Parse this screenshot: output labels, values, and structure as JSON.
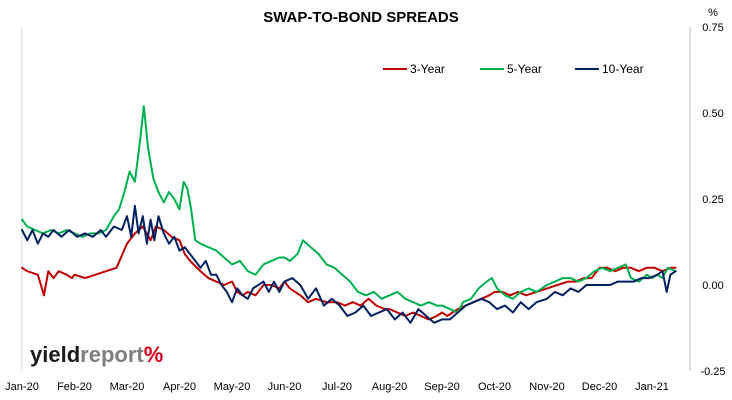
{
  "chart_data": {
    "type": "line",
    "title": "SWAP-TO-BOND SPREADS",
    "y_unit": "%",
    "ylim": [
      -0.25,
      0.75
    ],
    "y_ticks": [
      "0.75",
      "0.50",
      "0.25",
      "0.00",
      "-0.25"
    ],
    "y_axis_position": "right",
    "x_ticks": [
      "Jan-20",
      "Feb-20",
      "Mar-20",
      "Apr-20",
      "May-20",
      "Jun-20",
      "Jul-20",
      "Aug-20",
      "Sep-20",
      "Oct-20",
      "Nov-20",
      "Dec-20",
      "Jan-21"
    ],
    "grid": false,
    "legend_position": "top-right",
    "series": [
      {
        "name": "3-Year",
        "color": "#c00000",
        "points": [
          [
            0.0,
            0.05
          ],
          [
            0.1,
            0.04
          ],
          [
            0.3,
            0.03
          ],
          [
            0.42,
            -0.03
          ],
          [
            0.5,
            0.04
          ],
          [
            0.6,
            0.02
          ],
          [
            0.7,
            0.04
          ],
          [
            0.85,
            0.03
          ],
          [
            0.95,
            0.02
          ],
          [
            1.0,
            0.03
          ],
          [
            1.2,
            0.02
          ],
          [
            1.4,
            0.03
          ],
          [
            1.6,
            0.04
          ],
          [
            1.8,
            0.05
          ],
          [
            2.0,
            0.12
          ],
          [
            2.15,
            0.15
          ],
          [
            2.3,
            0.17
          ],
          [
            2.45,
            0.13
          ],
          [
            2.55,
            0.17
          ],
          [
            2.7,
            0.16
          ],
          [
            2.85,
            0.14
          ],
          [
            3.0,
            0.13
          ],
          [
            3.1,
            0.09
          ],
          [
            3.2,
            0.07
          ],
          [
            3.4,
            0.04
          ],
          [
            3.55,
            0.02
          ],
          [
            3.7,
            0.01
          ],
          [
            3.85,
            0.0
          ],
          [
            4.0,
            0.01
          ],
          [
            4.1,
            -0.02
          ],
          [
            4.2,
            -0.03
          ],
          [
            4.3,
            -0.02
          ],
          [
            4.45,
            -0.03
          ],
          [
            4.6,
            0.0
          ],
          [
            4.75,
            0.0
          ],
          [
            4.9,
            -0.01
          ],
          [
            5.0,
            0.01
          ],
          [
            5.1,
            -0.01
          ],
          [
            5.3,
            -0.03
          ],
          [
            5.45,
            -0.05
          ],
          [
            5.6,
            -0.04
          ],
          [
            5.8,
            -0.05
          ],
          [
            6.0,
            -0.05
          ],
          [
            6.15,
            -0.06
          ],
          [
            6.3,
            -0.05
          ],
          [
            6.45,
            -0.06
          ],
          [
            6.6,
            -0.04
          ],
          [
            6.75,
            -0.06
          ],
          [
            6.9,
            -0.07
          ],
          [
            7.0,
            -0.07
          ],
          [
            7.15,
            -0.08
          ],
          [
            7.3,
            -0.09
          ],
          [
            7.45,
            -0.08
          ],
          [
            7.6,
            -0.09
          ],
          [
            7.75,
            -0.1
          ],
          [
            7.9,
            -0.09
          ],
          [
            8.0,
            -0.08
          ],
          [
            8.1,
            -0.09
          ],
          [
            8.2,
            -0.08
          ],
          [
            8.3,
            -0.07
          ],
          [
            8.45,
            -0.06
          ],
          [
            8.6,
            -0.05
          ],
          [
            8.75,
            -0.04
          ],
          [
            8.9,
            -0.03
          ],
          [
            9.0,
            -0.02
          ],
          [
            9.15,
            -0.02
          ],
          [
            9.3,
            -0.03
          ],
          [
            9.45,
            -0.02
          ],
          [
            9.6,
            -0.03
          ],
          [
            9.8,
            -0.02
          ],
          [
            10.0,
            -0.01
          ],
          [
            10.2,
            0.0
          ],
          [
            10.4,
            0.01
          ],
          [
            10.55,
            0.01
          ],
          [
            10.7,
            0.02
          ],
          [
            10.85,
            0.02
          ],
          [
            11.0,
            0.05
          ],
          [
            11.15,
            0.05
          ],
          [
            11.3,
            0.04
          ],
          [
            11.45,
            0.05
          ],
          [
            11.6,
            0.05
          ],
          [
            11.75,
            0.04
          ],
          [
            11.9,
            0.05
          ],
          [
            12.05,
            0.05
          ],
          [
            12.2,
            0.04
          ],
          [
            12.35,
            0.05
          ],
          [
            12.45,
            0.05
          ]
        ]
      },
      {
        "name": "5-Year",
        "color": "#00b050",
        "points": [
          [
            0.0,
            0.19
          ],
          [
            0.1,
            0.17
          ],
          [
            0.25,
            0.16
          ],
          [
            0.4,
            0.15
          ],
          [
            0.55,
            0.16
          ],
          [
            0.7,
            0.15
          ],
          [
            0.85,
            0.16
          ],
          [
            1.0,
            0.15
          ],
          [
            1.15,
            0.14
          ],
          [
            1.3,
            0.15
          ],
          [
            1.45,
            0.15
          ],
          [
            1.6,
            0.16
          ],
          [
            1.75,
            0.2
          ],
          [
            1.85,
            0.22
          ],
          [
            1.95,
            0.27
          ],
          [
            2.05,
            0.33
          ],
          [
            2.15,
            0.3
          ],
          [
            2.25,
            0.42
          ],
          [
            2.32,
            0.52
          ],
          [
            2.4,
            0.4
          ],
          [
            2.5,
            0.31
          ],
          [
            2.6,
            0.27
          ],
          [
            2.7,
            0.24
          ],
          [
            2.8,
            0.27
          ],
          [
            2.9,
            0.25
          ],
          [
            3.0,
            0.22
          ],
          [
            3.08,
            0.3
          ],
          [
            3.15,
            0.28
          ],
          [
            3.22,
            0.22
          ],
          [
            3.3,
            0.13
          ],
          [
            3.4,
            0.12
          ],
          [
            3.55,
            0.11
          ],
          [
            3.7,
            0.1
          ],
          [
            3.85,
            0.08
          ],
          [
            4.0,
            0.06
          ],
          [
            4.15,
            0.07
          ],
          [
            4.3,
            0.04
          ],
          [
            4.45,
            0.03
          ],
          [
            4.6,
            0.06
          ],
          [
            4.75,
            0.07
          ],
          [
            4.9,
            0.08
          ],
          [
            5.0,
            0.08
          ],
          [
            5.1,
            0.07
          ],
          [
            5.25,
            0.09
          ],
          [
            5.35,
            0.13
          ],
          [
            5.5,
            0.11
          ],
          [
            5.65,
            0.09
          ],
          [
            5.8,
            0.06
          ],
          [
            5.95,
            0.05
          ],
          [
            6.1,
            0.03
          ],
          [
            6.25,
            0.01
          ],
          [
            6.4,
            -0.02
          ],
          [
            6.55,
            -0.03
          ],
          [
            6.7,
            -0.02
          ],
          [
            6.85,
            -0.04
          ],
          [
            7.0,
            -0.03
          ],
          [
            7.15,
            -0.02
          ],
          [
            7.3,
            -0.04
          ],
          [
            7.45,
            -0.05
          ],
          [
            7.6,
            -0.06
          ],
          [
            7.75,
            -0.05
          ],
          [
            7.9,
            -0.06
          ],
          [
            8.0,
            -0.06
          ],
          [
            8.15,
            -0.07
          ],
          [
            8.3,
            -0.08
          ],
          [
            8.4,
            -0.05
          ],
          [
            8.55,
            -0.04
          ],
          [
            8.7,
            -0.01
          ],
          [
            8.85,
            0.01
          ],
          [
            8.95,
            0.02
          ],
          [
            9.05,
            -0.01
          ],
          [
            9.2,
            -0.03
          ],
          [
            9.35,
            -0.04
          ],
          [
            9.5,
            -0.02
          ],
          [
            9.65,
            -0.01
          ],
          [
            9.8,
            -0.02
          ],
          [
            10.0,
            0.0
          ],
          [
            10.15,
            0.01
          ],
          [
            10.3,
            0.02
          ],
          [
            10.45,
            0.02
          ],
          [
            10.6,
            0.01
          ],
          [
            10.75,
            0.02
          ],
          [
            10.9,
            0.04
          ],
          [
            11.05,
            0.05
          ],
          [
            11.2,
            0.04
          ],
          [
            11.35,
            0.05
          ],
          [
            11.5,
            0.06
          ],
          [
            11.6,
            0.02
          ],
          [
            11.75,
            0.01
          ],
          [
            11.9,
            0.03
          ],
          [
            12.0,
            0.02
          ],
          [
            12.1,
            0.03
          ],
          [
            12.2,
            0.02
          ],
          [
            12.3,
            0.05
          ],
          [
            12.45,
            0.04
          ]
        ]
      },
      {
        "name": "10-Year",
        "color": "#002060",
        "points": [
          [
            0.0,
            0.16
          ],
          [
            0.1,
            0.13
          ],
          [
            0.2,
            0.16
          ],
          [
            0.3,
            0.12
          ],
          [
            0.4,
            0.15
          ],
          [
            0.5,
            0.14
          ],
          [
            0.6,
            0.16
          ],
          [
            0.75,
            0.14
          ],
          [
            0.9,
            0.16
          ],
          [
            1.05,
            0.14
          ],
          [
            1.2,
            0.15
          ],
          [
            1.35,
            0.14
          ],
          [
            1.5,
            0.16
          ],
          [
            1.6,
            0.14
          ],
          [
            1.75,
            0.17
          ],
          [
            1.9,
            0.16
          ],
          [
            2.0,
            0.2
          ],
          [
            2.08,
            0.14
          ],
          [
            2.15,
            0.23
          ],
          [
            2.22,
            0.15
          ],
          [
            2.3,
            0.2
          ],
          [
            2.38,
            0.12
          ],
          [
            2.45,
            0.19
          ],
          [
            2.52,
            0.13
          ],
          [
            2.6,
            0.2
          ],
          [
            2.7,
            0.15
          ],
          [
            2.8,
            0.12
          ],
          [
            2.9,
            0.14
          ],
          [
            3.0,
            0.1
          ],
          [
            3.1,
            0.11
          ],
          [
            3.2,
            0.09
          ],
          [
            3.3,
            0.07
          ],
          [
            3.4,
            0.05
          ],
          [
            3.5,
            0.07
          ],
          [
            3.6,
            0.03
          ],
          [
            3.7,
            0.03
          ],
          [
            3.8,
            0.0
          ],
          [
            3.9,
            -0.02
          ],
          [
            4.0,
            -0.05
          ],
          [
            4.1,
            -0.01
          ],
          [
            4.2,
            -0.03
          ],
          [
            4.3,
            -0.04
          ],
          [
            4.4,
            -0.01
          ],
          [
            4.5,
            0.0
          ],
          [
            4.6,
            0.01
          ],
          [
            4.7,
            -0.02
          ],
          [
            4.8,
            0.01
          ],
          [
            4.9,
            -0.02
          ],
          [
            5.0,
            0.01
          ],
          [
            5.15,
            0.02
          ],
          [
            5.3,
            0.0
          ],
          [
            5.45,
            -0.04
          ],
          [
            5.6,
            -0.01
          ],
          [
            5.75,
            -0.06
          ],
          [
            5.9,
            -0.04
          ],
          [
            6.05,
            -0.06
          ],
          [
            6.2,
            -0.09
          ],
          [
            6.35,
            -0.08
          ],
          [
            6.5,
            -0.06
          ],
          [
            6.65,
            -0.09
          ],
          [
            6.8,
            -0.08
          ],
          [
            6.95,
            -0.07
          ],
          [
            7.1,
            -0.1
          ],
          [
            7.25,
            -0.08
          ],
          [
            7.4,
            -0.11
          ],
          [
            7.55,
            -0.07
          ],
          [
            7.7,
            -0.09
          ],
          [
            7.85,
            -0.11
          ],
          [
            8.0,
            -0.1
          ],
          [
            8.15,
            -0.1
          ],
          [
            8.3,
            -0.08
          ],
          [
            8.45,
            -0.06
          ],
          [
            8.6,
            -0.05
          ],
          [
            8.75,
            -0.04
          ],
          [
            8.9,
            -0.05
          ],
          [
            9.05,
            -0.07
          ],
          [
            9.2,
            -0.06
          ],
          [
            9.35,
            -0.08
          ],
          [
            9.5,
            -0.05
          ],
          [
            9.65,
            -0.07
          ],
          [
            9.8,
            -0.05
          ],
          [
            10.0,
            -0.04
          ],
          [
            10.15,
            -0.02
          ],
          [
            10.3,
            -0.03
          ],
          [
            10.45,
            -0.01
          ],
          [
            10.6,
            -0.02
          ],
          [
            10.75,
            0.0
          ],
          [
            10.9,
            0.0
          ],
          [
            11.05,
            0.0
          ],
          [
            11.2,
            0.0
          ],
          [
            11.35,
            0.01
          ],
          [
            11.5,
            0.01
          ],
          [
            11.65,
            0.01
          ],
          [
            11.8,
            0.02
          ],
          [
            11.95,
            0.02
          ],
          [
            12.1,
            0.03
          ],
          [
            12.2,
            0.04
          ],
          [
            12.28,
            -0.02
          ],
          [
            12.35,
            0.03
          ],
          [
            12.45,
            0.04
          ]
        ]
      }
    ]
  },
  "logo": {
    "word_plain": "yield",
    "word_accent": "report",
    "symbol": "%",
    "colors": {
      "plain": "#1a1a1a",
      "accent": "#7f7f7f",
      "symbol": "#d9001b"
    }
  }
}
